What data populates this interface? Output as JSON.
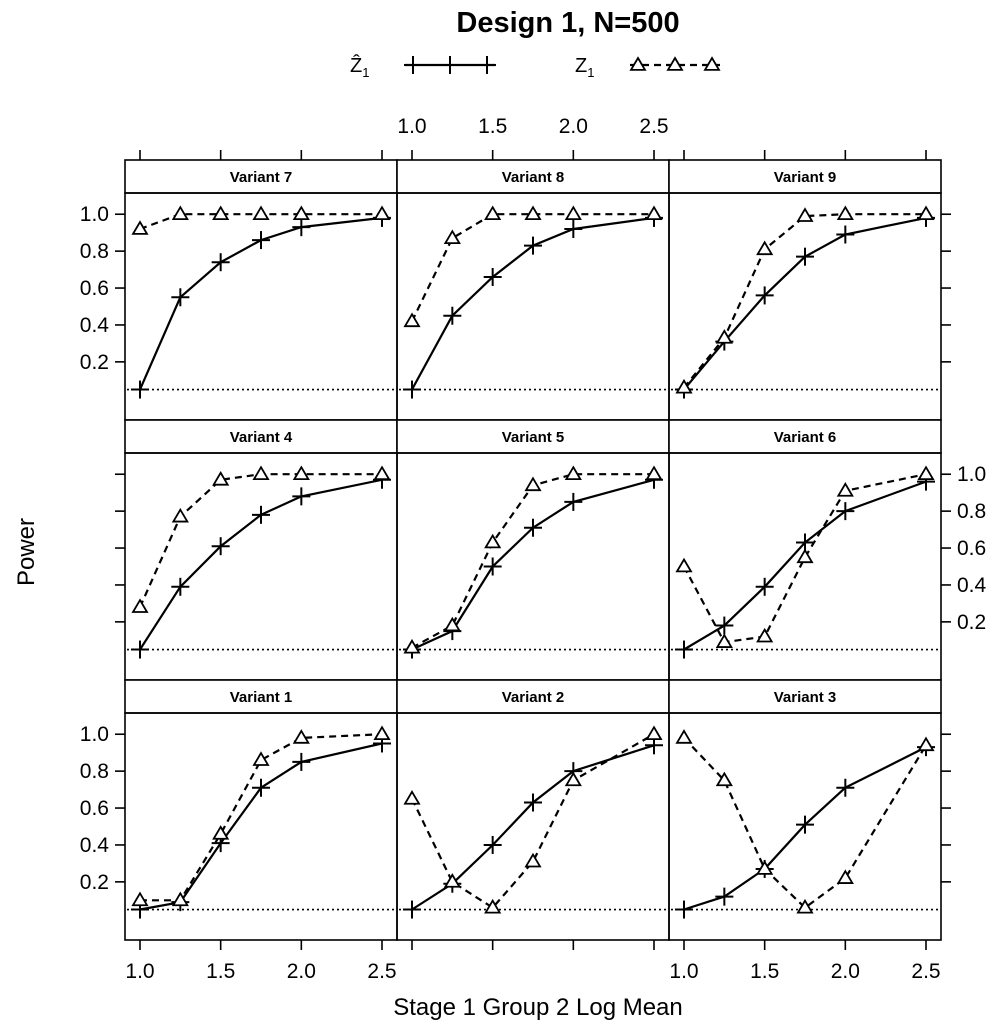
{
  "chart_data": {
    "type": "line",
    "title": "Design 1, N=500",
    "xlabel": "Stage 1 Group 2 Log Mean",
    "ylabel": "Power",
    "xlim": [
      1.0,
      2.5
    ],
    "ylim": [
      0.0,
      1.0
    ],
    "x_ticks": [
      "1.0",
      "1.5",
      "2.0",
      "2.5"
    ],
    "y_ticks": [
      "0.2",
      "0.4",
      "0.6",
      "0.8",
      "1.0"
    ],
    "x": [
      1.0,
      1.25,
      1.5,
      1.75,
      2.0,
      2.5
    ],
    "reference_line": 0.05,
    "legend": [
      {
        "label": "Ẑ",
        "subscript": "1",
        "style": "solid",
        "marker": "plus"
      },
      {
        "label": "Z",
        "subscript": "1",
        "style": "dashed",
        "marker": "triangle"
      }
    ],
    "panels": [
      {
        "title": "Variant 7",
        "row": 0,
        "col": 0,
        "series": [
          {
            "values": [
              0.05,
              0.55,
              0.74,
              0.86,
              0.93,
              0.98
            ]
          },
          {
            "values": [
              0.92,
              1.0,
              1.0,
              1.0,
              1.0,
              1.0
            ]
          }
        ]
      },
      {
        "title": "Variant 8",
        "row": 0,
        "col": 1,
        "series": [
          {
            "values": [
              0.05,
              0.45,
              0.66,
              0.83,
              0.92,
              0.98
            ]
          },
          {
            "values": [
              0.42,
              0.87,
              1.0,
              1.0,
              1.0,
              1.0
            ]
          }
        ]
      },
      {
        "title": "Variant 9",
        "row": 0,
        "col": 2,
        "series": [
          {
            "values": [
              0.05,
              0.31,
              0.56,
              0.77,
              0.89,
              0.98
            ]
          },
          {
            "values": [
              0.06,
              0.33,
              0.81,
              0.99,
              1.0,
              1.0
            ]
          }
        ]
      },
      {
        "title": "Variant 4",
        "row": 1,
        "col": 0,
        "series": [
          {
            "values": [
              0.05,
              0.39,
              0.61,
              0.78,
              0.88,
              0.97
            ]
          },
          {
            "values": [
              0.28,
              0.77,
              0.97,
              1.0,
              1.0,
              1.0
            ]
          }
        ]
      },
      {
        "title": "Variant 5",
        "row": 1,
        "col": 1,
        "series": [
          {
            "values": [
              0.05,
              0.15,
              0.5,
              0.71,
              0.85,
              0.97
            ]
          },
          {
            "values": [
              0.06,
              0.18,
              0.63,
              0.94,
              1.0,
              1.0
            ]
          }
        ]
      },
      {
        "title": "Variant 6",
        "row": 1,
        "col": 2,
        "series": [
          {
            "values": [
              0.05,
              0.18,
              0.39,
              0.63,
              0.8,
              0.96
            ]
          },
          {
            "values": [
              0.5,
              0.09,
              0.12,
              0.55,
              0.91,
              1.0
            ]
          }
        ]
      },
      {
        "title": "Variant 1",
        "row": 2,
        "col": 0,
        "series": [
          {
            "values": [
              0.05,
              0.09,
              0.41,
              0.71,
              0.85,
              0.95
            ]
          },
          {
            "values": [
              0.1,
              0.1,
              0.46,
              0.86,
              0.98,
              1.0
            ]
          }
        ]
      },
      {
        "title": "Variant 2",
        "row": 2,
        "col": 1,
        "series": [
          {
            "values": [
              0.05,
              0.19,
              0.4,
              0.63,
              0.8,
              0.94
            ]
          },
          {
            "values": [
              0.65,
              0.2,
              0.06,
              0.31,
              0.75,
              1.0
            ]
          }
        ]
      },
      {
        "title": "Variant 3",
        "row": 2,
        "col": 2,
        "series": [
          {
            "values": [
              0.05,
              0.12,
              0.27,
              0.51,
              0.71,
              0.93
            ]
          },
          {
            "values": [
              0.98,
              0.75,
              0.27,
              0.06,
              0.22,
              0.94
            ]
          }
        ]
      }
    ]
  }
}
